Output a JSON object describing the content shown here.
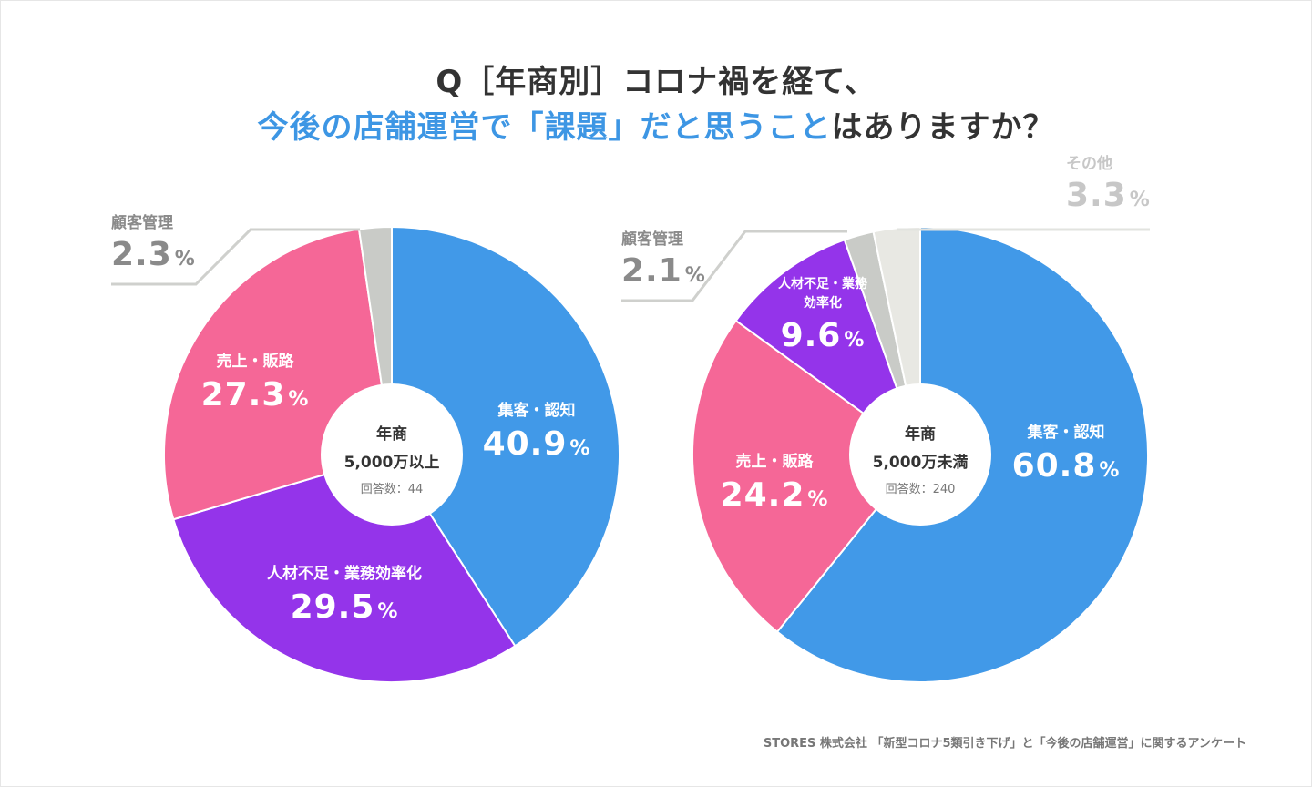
{
  "title": {
    "line1": "Q［年商別］コロナ禍を経て、",
    "line2_highlight": "今後の店舗運営で「課題」だと思うこと",
    "line2_rest": "はありますか？"
  },
  "unit": "%",
  "source": "STORES 株式会社 「新型コロナ5類引き下げ」と「今後の店舗運営」に関するアンケート",
  "chart_data": [
    {
      "type": "pie",
      "title": "年商 5,000万以上",
      "center": {
        "line1": "年商",
        "line2": "5,000万以上",
        "respondents": "回答数：44"
      },
      "slices": [
        {
          "label": "集客・認知",
          "value": 40.9,
          "value_text": "40.9",
          "color": "#4199e8"
        },
        {
          "label": "人材不足・業務効率化",
          "value": 29.5,
          "value_text": "29.5",
          "color": "#9434ea"
        },
        {
          "label": "売上・販路",
          "value": 27.3,
          "value_text": "27.3",
          "color": "#f56797"
        },
        {
          "label": "顧客管理",
          "value": 2.3,
          "value_text": "2.3",
          "color": "#c9cbc7"
        }
      ]
    },
    {
      "type": "pie",
      "title": "年商 5,000万未満",
      "center": {
        "line1": "年商",
        "line2": "5,000万未満",
        "respondents": "回答数：240"
      },
      "slices": [
        {
          "label": "集客・認知",
          "value": 60.8,
          "value_text": "60.8",
          "color": "#4199e8"
        },
        {
          "label": "売上・販路",
          "value": 24.2,
          "value_text": "24.2",
          "color": "#f56797"
        },
        {
          "label": "人材不足・業務効率化",
          "value": 9.6,
          "value_text": "9.6",
          "color": "#9434ea"
        },
        {
          "label": "顧客管理",
          "value": 2.1,
          "value_text": "2.1",
          "color": "#c9cbc7"
        },
        {
          "label": "その他",
          "value": 3.3,
          "value_text": "3.3",
          "color": "#e8e8e3"
        }
      ]
    }
  ]
}
